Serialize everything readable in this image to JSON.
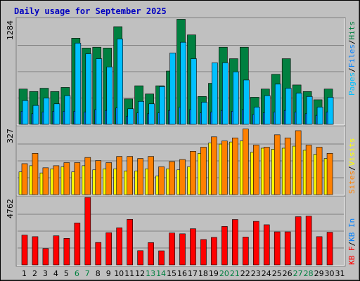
{
  "title": "Daily usage for September 2025",
  "colors": {
    "background": "#c0c0c0",
    "title": "#0000c0",
    "hits": "#008040",
    "files": "#0080ff",
    "pages": "#00c0ff",
    "visits": "#ffff00",
    "sites": "#ff8000",
    "kbin": "#0080ff",
    "kbf": "#ff0000",
    "weekend": "#008040",
    "weekday": "#000000",
    "legend_slash": "#000000"
  },
  "chart_data": [
    {
      "type": "bar",
      "name": "hits-files-pages",
      "ymax_label": "1284",
      "ylim": [
        0,
        1284
      ],
      "categories": [
        "1",
        "2",
        "3",
        "4",
        "5",
        "6",
        "7",
        "8",
        "9",
        "10",
        "11",
        "12",
        "13",
        "14",
        "15",
        "16",
        "17",
        "18",
        "19",
        "20",
        "21",
        "22",
        "23",
        "24",
        "25",
        "26",
        "27",
        "28",
        "29",
        "30",
        "31"
      ],
      "weekend_days": [
        6,
        7,
        13,
        14,
        20,
        21,
        27,
        28
      ],
      "series": [
        {
          "name": "Hits",
          "color_key": "hits",
          "values": [
            430,
            400,
            440,
            400,
            450,
            1050,
            930,
            940,
            930,
            1190,
            310,
            470,
            370,
            470,
            650,
            1280,
            1090,
            340,
            500,
            940,
            800,
            940,
            330,
            430,
            610,
            800,
            480,
            400,
            300,
            430,
            0
          ]
        },
        {
          "name": "Files",
          "color_key": "files",
          "values": [
            160,
            130,
            150,
            160,
            160,
            160,
            150,
            180,
            170,
            200,
            100,
            140,
            130,
            140,
            170,
            210,
            180,
            140,
            150,
            170,
            160,
            180,
            120,
            140,
            150,
            170,
            150,
            130,
            110,
            150,
            0
          ]
        },
        {
          "name": "Pages",
          "color_key": "pages",
          "values": [
            290,
            230,
            320,
            250,
            350,
            990,
            860,
            800,
            700,
            1040,
            190,
            280,
            250,
            460,
            870,
            1000,
            800,
            270,
            750,
            750,
            640,
            540,
            210,
            350,
            490,
            440,
            380,
            340,
            210,
            330,
            0
          ]
        }
      ]
    },
    {
      "type": "bar",
      "name": "visits-sites",
      "ymax_label": "327",
      "ylim": [
        0,
        327
      ],
      "categories": [
        "1",
        "2",
        "3",
        "4",
        "5",
        "6",
        "7",
        "8",
        "9",
        "10",
        "11",
        "12",
        "13",
        "14",
        "15",
        "16",
        "17",
        "18",
        "19",
        "20",
        "21",
        "22",
        "23",
        "24",
        "25",
        "26",
        "27",
        "28",
        "29",
        "30",
        "31"
      ],
      "series": [
        {
          "name": "Visits",
          "color_key": "visits",
          "values": [
            110,
            140,
            105,
            125,
            135,
            110,
            140,
            120,
            125,
            125,
            115,
            115,
            125,
            90,
            125,
            120,
            135,
            200,
            250,
            245,
            255,
            260,
            205,
            225,
            220,
            225,
            235,
            215,
            195,
            175,
            0
          ]
        },
        {
          "name": "Sites",
          "color_key": "sites",
          "values": [
            150,
            200,
            130,
            140,
            155,
            155,
            180,
            165,
            155,
            185,
            185,
            175,
            185,
            135,
            160,
            170,
            210,
            230,
            280,
            260,
            275,
            318,
            240,
            230,
            290,
            275,
            310,
            240,
            230,
            200,
            0
          ]
        }
      ]
    },
    {
      "type": "bar",
      "name": "kbin-kbf",
      "ymax_label": "4762",
      "ylim": [
        0,
        4762
      ],
      "categories": [
        "1",
        "2",
        "3",
        "4",
        "5",
        "6",
        "7",
        "8",
        "9",
        "10",
        "11",
        "12",
        "13",
        "14",
        "15",
        "16",
        "17",
        "18",
        "19",
        "20",
        "21",
        "22",
        "23",
        "24",
        "25",
        "26",
        "27",
        "28",
        "29",
        "30",
        "31"
      ],
      "series": [
        {
          "name": "KB In",
          "color_key": "kbin",
          "values": [
            0,
            0,
            0,
            0,
            0,
            0,
            0,
            0,
            0,
            0,
            0,
            0,
            0,
            0,
            0,
            0,
            0,
            0,
            0,
            0,
            0,
            0,
            0,
            0,
            0,
            0,
            0,
            0,
            0,
            0,
            0
          ]
        },
        {
          "name": "KB F",
          "color_key": "kbf",
          "values": [
            2100,
            1990,
            1150,
            2050,
            1870,
            2960,
            4760,
            1580,
            2270,
            2620,
            3210,
            1000,
            1570,
            990,
            2250,
            2190,
            2550,
            1790,
            1940,
            2710,
            3200,
            1960,
            3070,
            2830,
            2330,
            2330,
            3400,
            3440,
            1990,
            2300,
            0
          ]
        }
      ]
    }
  ],
  "legend": {
    "top": [
      {
        "text": "Pages",
        "color_key": "pages"
      },
      {
        "text": "/",
        "color_key": "legend_slash"
      },
      {
        "text": "Files",
        "color_key": "files"
      },
      {
        "text": "/",
        "color_key": "legend_slash"
      },
      {
        "text": "Hits",
        "color_key": "hits"
      }
    ],
    "middle": [
      {
        "text": "Sites",
        "color_key": "sites"
      },
      {
        "text": "/",
        "color_key": "legend_slash"
      },
      {
        "text": "Visits",
        "color_key": "visits"
      }
    ],
    "bottom": [
      {
        "text": "KB F",
        "color_key": "kbf"
      },
      {
        "text": "/",
        "color_key": "legend_slash"
      },
      {
        "text": "KB In",
        "color_key": "kbin"
      }
    ]
  }
}
